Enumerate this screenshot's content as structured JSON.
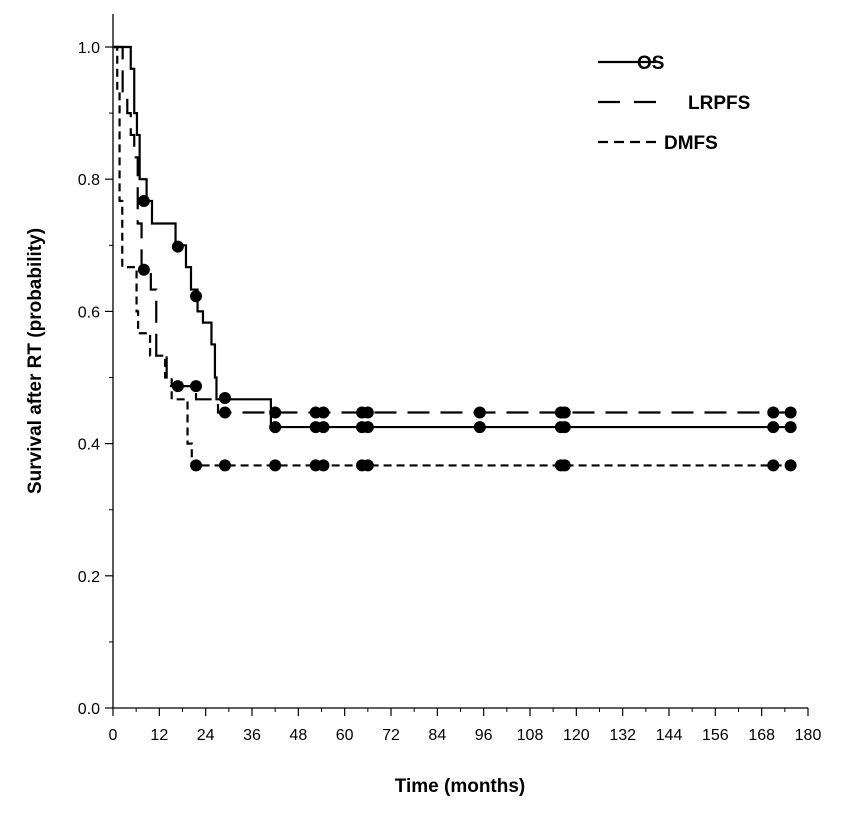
{
  "chart_data": {
    "type": "line",
    "subtype": "kaplan-meier step curves with censor markers",
    "xlabel": "Time (months)",
    "ylabel": "Survival after RT (probability)",
    "xlim": [
      0,
      180
    ],
    "ylim": [
      0,
      1.0
    ],
    "xticks": [
      "0",
      "12",
      "24",
      "36",
      "48",
      "60",
      "72",
      "84",
      "96",
      "108",
      "120",
      "132",
      "144",
      "156",
      "168",
      "180"
    ],
    "xtick_values": [
      0,
      12,
      24,
      36,
      48,
      60,
      72,
      84,
      96,
      108,
      120,
      132,
      144,
      156,
      168,
      180
    ],
    "xticks_minor_step": 6,
    "yticks": [
      "0.0",
      "0.2",
      "0.4",
      "0.6",
      "0.8",
      "1.0"
    ],
    "ytick_values": [
      0,
      0.2,
      0.4,
      0.6,
      0.8,
      1.0
    ],
    "yticks_minor_step": 0.1,
    "grid": false,
    "legend_position": "top-right",
    "series": [
      {
        "name": "OS",
        "dash": "solid",
        "steps": [
          [
            0,
            1.0
          ],
          [
            4.6,
            0.967
          ],
          [
            5.5,
            0.9
          ],
          [
            6.2,
            0.867
          ],
          [
            6.9,
            0.8
          ],
          [
            8.7,
            0.767
          ],
          [
            10.1,
            0.733
          ],
          [
            16.2,
            0.7
          ],
          [
            18.9,
            0.667
          ],
          [
            20.2,
            0.633
          ],
          [
            21.9,
            0.6
          ],
          [
            23.3,
            0.583
          ],
          [
            25.5,
            0.55
          ],
          [
            26.4,
            0.5
          ],
          [
            26.8,
            0.467
          ],
          [
            40.9,
            0.425
          ],
          [
            176,
            0.425
          ]
        ],
        "censored": [
          [
            8.0,
            0.767
          ],
          [
            16.8,
            0.698
          ],
          [
            21.5,
            0.623
          ],
          [
            29.0,
            0.469
          ],
          [
            42.0,
            0.425
          ],
          [
            52.5,
            0.425
          ],
          [
            54.5,
            0.425
          ],
          [
            64.5,
            0.425
          ],
          [
            66.0,
            0.425
          ],
          [
            95.0,
            0.425
          ],
          [
            116.0,
            0.425
          ],
          [
            117.0,
            0.425
          ],
          [
            171.0,
            0.425
          ],
          [
            175.5,
            0.425
          ]
        ]
      },
      {
        "name": "LRPFS",
        "dash": "long-dash",
        "steps": [
          [
            0,
            1.0
          ],
          [
            2.5,
            0.933
          ],
          [
            3.7,
            0.9
          ],
          [
            4.6,
            0.867
          ],
          [
            5.5,
            0.833
          ],
          [
            6.4,
            0.733
          ],
          [
            7.4,
            0.667
          ],
          [
            9.8,
            0.633
          ],
          [
            11.2,
            0.533
          ],
          [
            13.9,
            0.487
          ],
          [
            21.5,
            0.467
          ],
          [
            27.2,
            0.447
          ],
          [
            176,
            0.447
          ]
        ],
        "censored": [
          [
            8.0,
            0.663
          ],
          [
            16.8,
            0.487
          ],
          [
            21.5,
            0.487
          ],
          [
            29.0,
            0.447
          ],
          [
            42.0,
            0.447
          ],
          [
            52.5,
            0.447
          ],
          [
            54.5,
            0.447
          ],
          [
            64.5,
            0.447
          ],
          [
            66.0,
            0.447
          ],
          [
            95.0,
            0.447
          ],
          [
            116.0,
            0.447
          ],
          [
            117.0,
            0.447
          ],
          [
            171.0,
            0.447
          ],
          [
            175.5,
            0.447
          ]
        ]
      },
      {
        "name": "DMFS",
        "dash": "short-dash",
        "steps": [
          [
            0,
            1.0
          ],
          [
            1.1,
            0.933
          ],
          [
            1.7,
            0.767
          ],
          [
            2.4,
            0.667
          ],
          [
            6.1,
            0.6
          ],
          [
            6.5,
            0.567
          ],
          [
            9.6,
            0.533
          ],
          [
            13.5,
            0.5
          ],
          [
            15.2,
            0.467
          ],
          [
            19.3,
            0.4
          ],
          [
            20.4,
            0.367
          ],
          [
            176,
            0.367
          ]
        ],
        "censored": [
          [
            21.5,
            0.367
          ],
          [
            29.0,
            0.367
          ],
          [
            42.0,
            0.367
          ],
          [
            52.5,
            0.367
          ],
          [
            54.5,
            0.367
          ],
          [
            64.5,
            0.367
          ],
          [
            66.0,
            0.367
          ],
          [
            116.0,
            0.367
          ],
          [
            117.0,
            0.367
          ],
          [
            171.0,
            0.367
          ],
          [
            175.5,
            0.367
          ]
        ]
      }
    ]
  }
}
